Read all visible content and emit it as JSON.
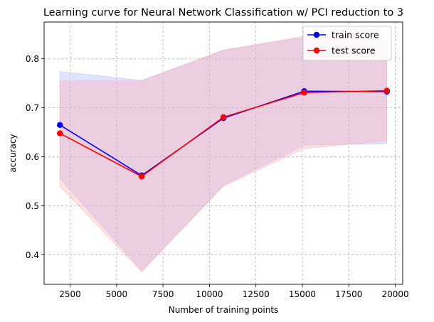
{
  "chart_data": {
    "type": "line",
    "title": "Learning curve for Neural Network Classification w/ PCI reduction to 3",
    "xlabel": "Number of training points",
    "ylabel": "accuracy",
    "xlim": [
      1100,
      20400
    ],
    "ylim": [
      0.34,
      0.875
    ],
    "xticks": [
      2500,
      5000,
      7500,
      10000,
      12500,
      15000,
      17500,
      20000
    ],
    "yticks": [
      0.4,
      0.5,
      0.6,
      0.7,
      0.8
    ],
    "grid": true,
    "legend_position": "top-right",
    "x": [
      1950,
      6350,
      10750,
      15100,
      19550
    ],
    "series": [
      {
        "name": "train score",
        "color": "#0000ff",
        "band_color": "#aab0ff",
        "values": [
          0.665,
          0.562,
          0.679,
          0.734,
          0.733
        ],
        "band_lower": [
          0.556,
          0.368,
          0.542,
          0.624,
          0.627
        ],
        "band_upper": [
          0.774,
          0.756,
          0.817,
          0.844,
          0.838
        ]
      },
      {
        "name": "test score",
        "color": "#ff0000",
        "band_color": "#ffaaaa",
        "values": [
          0.648,
          0.56,
          0.681,
          0.731,
          0.735
        ],
        "band_lower": [
          0.54,
          0.365,
          0.54,
          0.617,
          0.633
        ],
        "band_upper": [
          0.755,
          0.755,
          0.818,
          0.846,
          0.838
        ]
      }
    ]
  }
}
